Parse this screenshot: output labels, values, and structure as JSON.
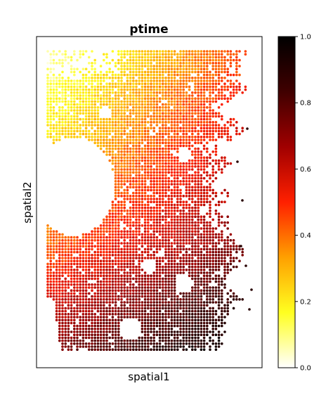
{
  "chart_data": {
    "type": "scatter",
    "title": "ptime",
    "xlabel": "spatial1",
    "ylabel": "spatial2",
    "x_ticks": "none",
    "y_ticks": "none",
    "grid": false,
    "legend": "none",
    "colormap": "afmhot_r",
    "colorbar": {
      "placement": "right",
      "range": [
        0.0,
        1.0
      ],
      "ticks": [
        {
          "value": 0.0,
          "label": "0.0"
        },
        {
          "value": 0.2,
          "label": "0.2"
        },
        {
          "value": 0.4,
          "label": "0.4"
        },
        {
          "value": 0.6,
          "label": "0.6"
        },
        {
          "value": 0.8,
          "label": "0.8"
        },
        {
          "value": 1.0,
          "label": "1.0"
        }
      ],
      "stops": [
        "#ffffff",
        "#ffff20",
        "#ffa000",
        "#ff2000",
        "#a00000",
        "#400000",
        "#000000"
      ]
    },
    "value_field": {
      "description": "ptime rises from upper-left (yellow) to lower-right (dark red/black)",
      "x_range": [
        0,
        1
      ],
      "y_range": [
        0,
        1
      ]
    }
  }
}
